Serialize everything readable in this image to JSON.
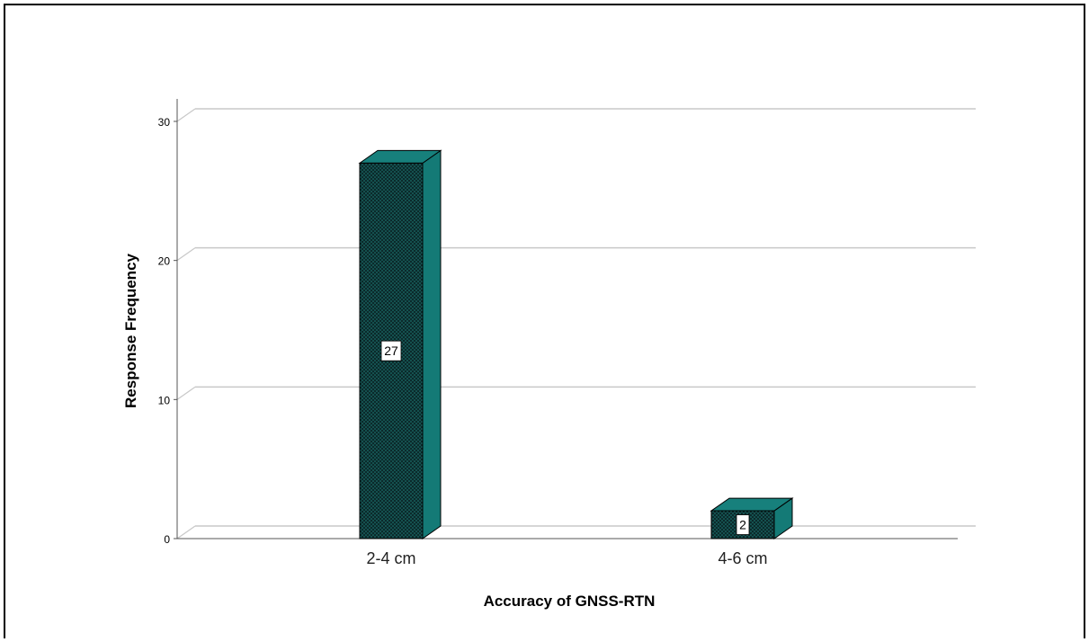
{
  "chart_data": {
    "type": "bar",
    "style": "3d-column",
    "categories": [
      "2-4 cm",
      "4-6 cm"
    ],
    "values": [
      27,
      2
    ],
    "data_labels": [
      "27",
      "2"
    ],
    "title": "",
    "xlabel": "Accuracy of GNSS-RTN",
    "ylabel": "Response Frequency",
    "ylim": [
      0,
      30
    ],
    "yticks": [
      "0",
      "10",
      "20",
      "30"
    ],
    "grid": true,
    "legend": "none",
    "colors": {
      "bar_front": "#0b2a2b",
      "bar_pattern": "#1f7f7b",
      "bar_side": "#147a76",
      "bar_top": "#17807c",
      "gridline": "#c8c8c8",
      "axis": "#555555"
    }
  }
}
